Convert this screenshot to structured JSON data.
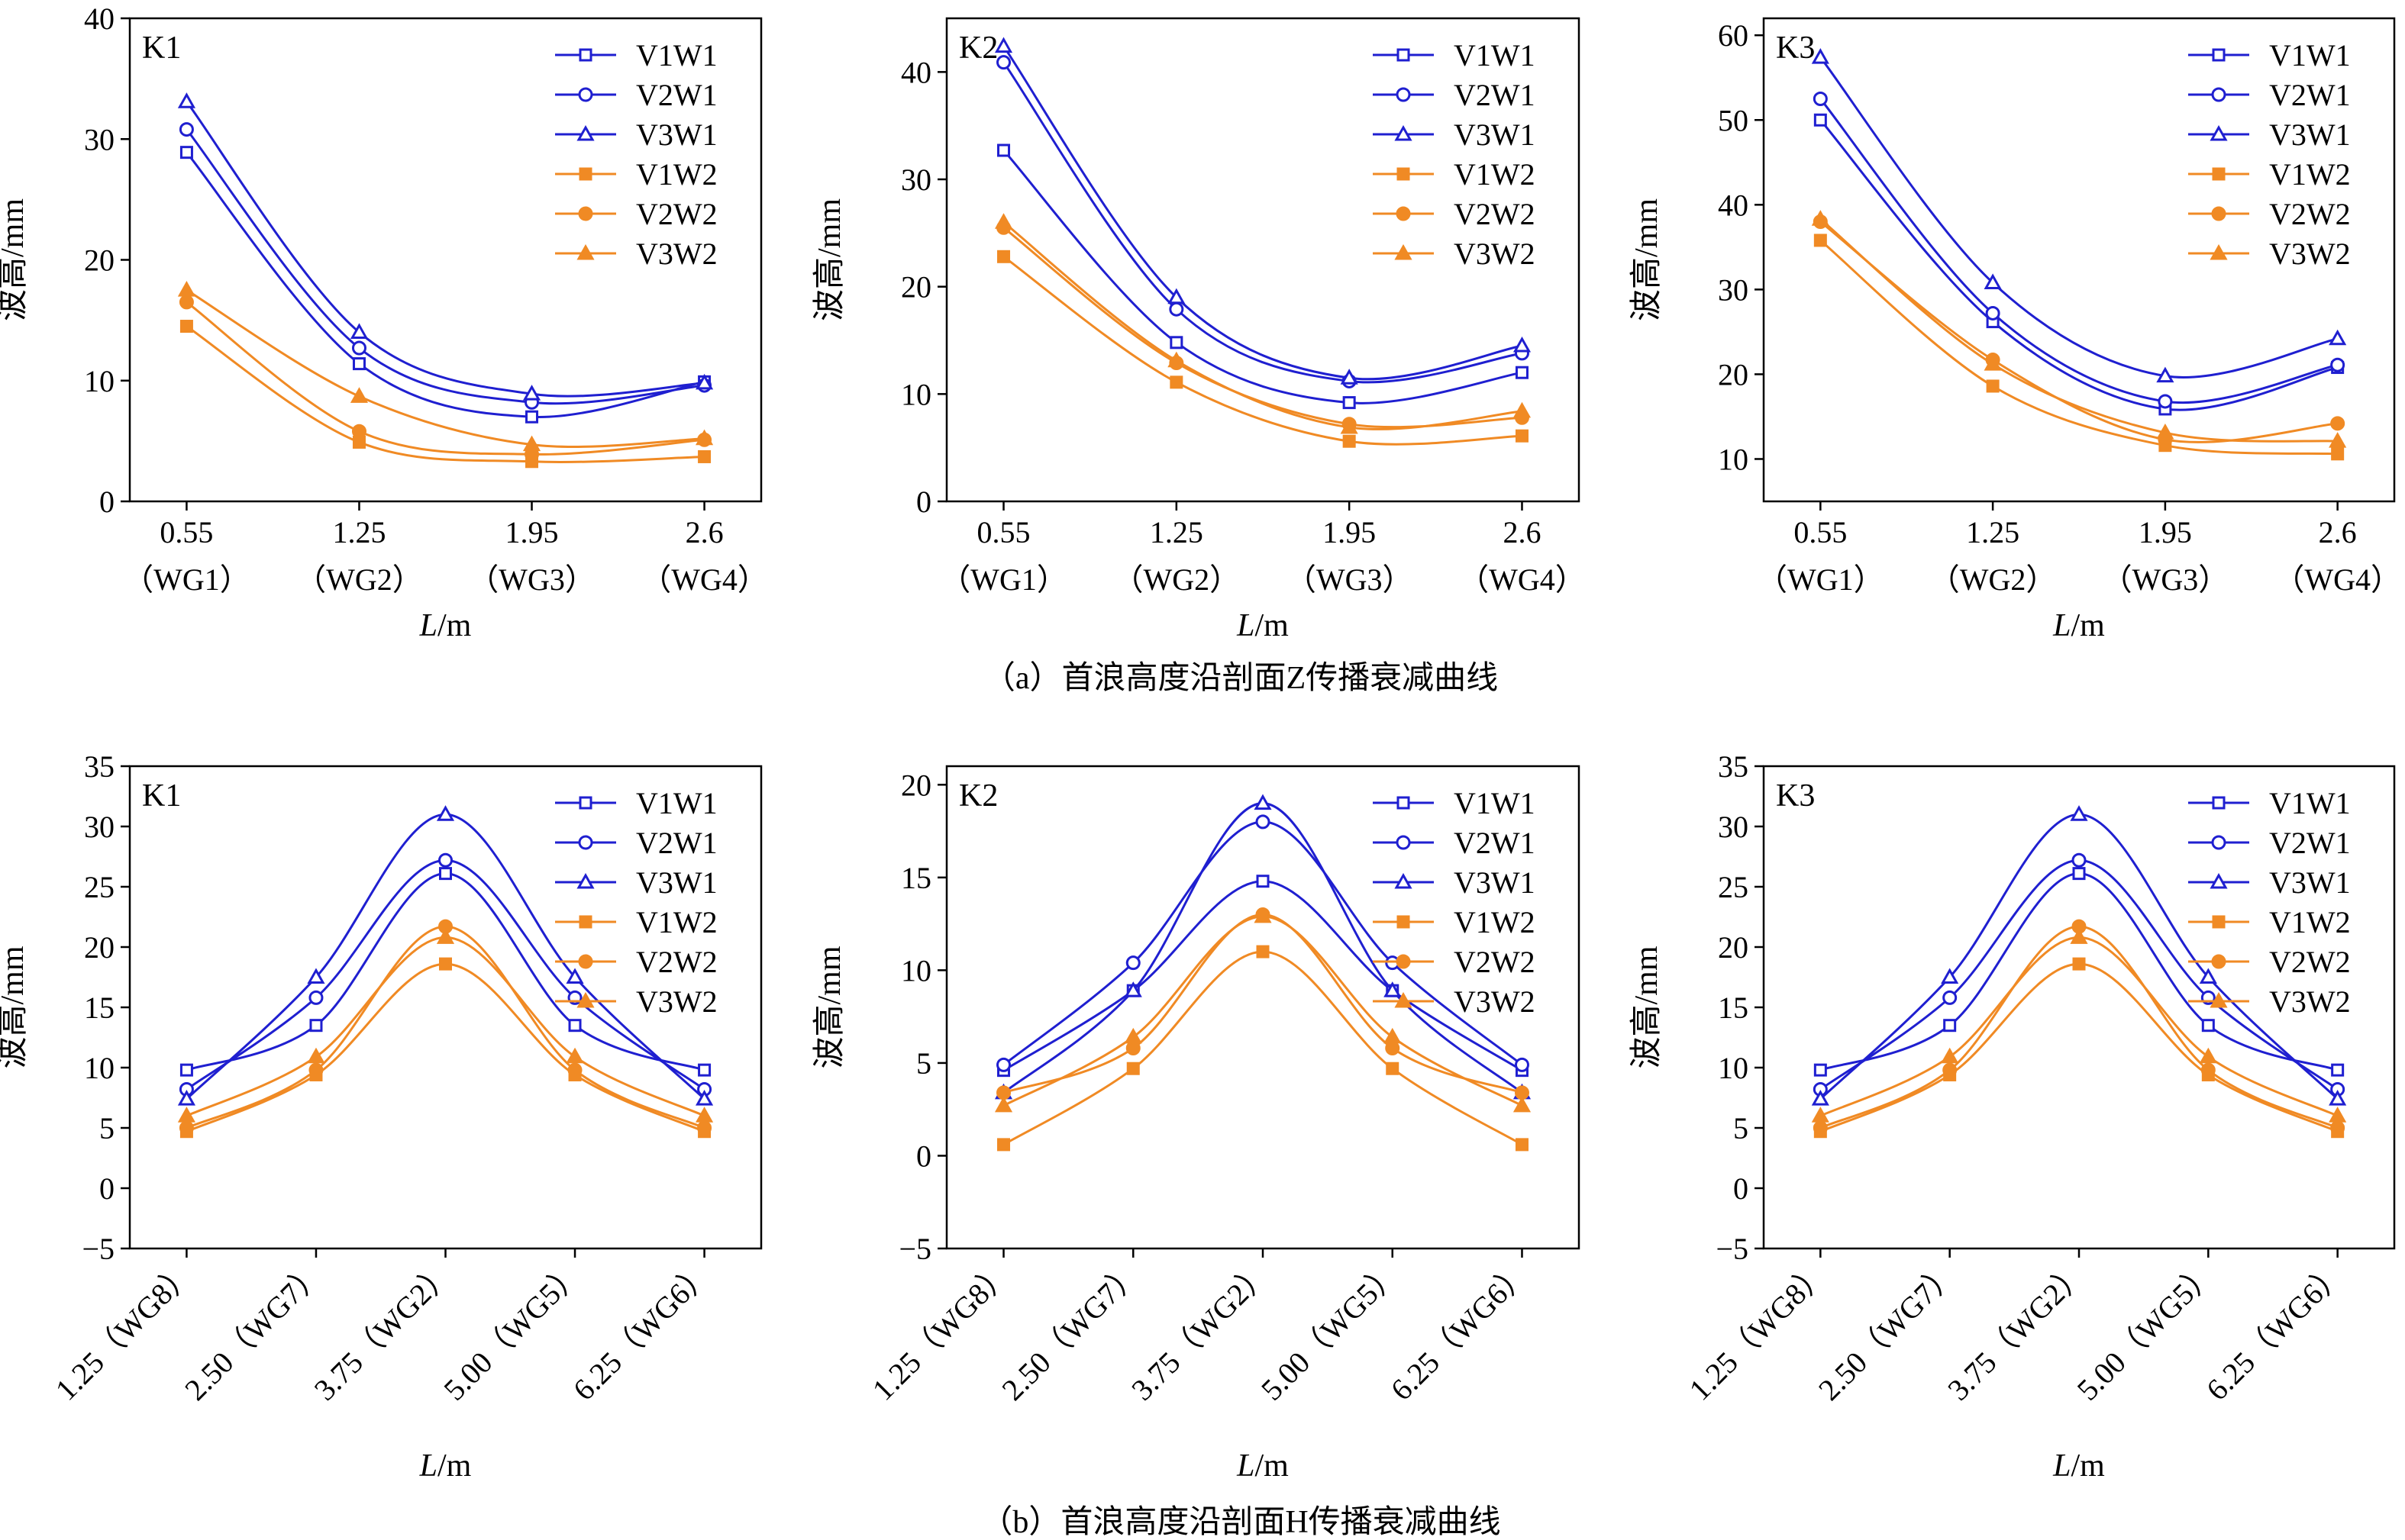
{
  "captions": {
    "row_a": "（a）首浪高度沿剖面Z传播衰减曲线",
    "row_b": "（b）首浪高度沿剖面H传播衰减曲线"
  },
  "series_styles": [
    {
      "name": "V1W1",
      "color": "#1f1fd0",
      "marker": "square",
      "filled": false
    },
    {
      "name": "V2W1",
      "color": "#1f1fd0",
      "marker": "circle",
      "filled": false
    },
    {
      "name": "V3W1",
      "color": "#1f1fd0",
      "marker": "triangle",
      "filled": false
    },
    {
      "name": "V1W2",
      "color": "#f08a24",
      "marker": "square",
      "filled": true
    },
    {
      "name": "V2W2",
      "color": "#f08a24",
      "marker": "circle",
      "filled": true
    },
    {
      "name": "V3W2",
      "color": "#f08a24",
      "marker": "triangle",
      "filled": true
    }
  ],
  "chart_data": [
    {
      "type": "line",
      "panel": "K1",
      "row": "a",
      "categories": [
        "0.55（WG1）",
        "1.25（WG2）",
        "1.95（WG3）",
        "2.6（WG4）"
      ],
      "x_tick_values": [
        "0.55",
        "1.25",
        "1.95",
        "2.6"
      ],
      "x_tick_gauges": [
        "（WG1）",
        "（WG2）",
        "（WG3）",
        "（WG4）"
      ],
      "xlabel": "L/m",
      "ylabel": "波高/mm",
      "ylim": [
        0,
        40
      ],
      "yticks": [
        0,
        10,
        20,
        30,
        40
      ],
      "legend": "top-right",
      "series": [
        {
          "name": "V1W1",
          "values": [
            28.9,
            11.4,
            7.0,
            9.9
          ]
        },
        {
          "name": "V2W1",
          "values": [
            30.8,
            12.7,
            8.2,
            9.6
          ]
        },
        {
          "name": "V3W1",
          "values": [
            33.1,
            14.0,
            8.9,
            9.8
          ]
        },
        {
          "name": "V1W2",
          "values": [
            14.5,
            4.9,
            3.3,
            3.7
          ]
        },
        {
          "name": "V2W2",
          "values": [
            16.5,
            5.8,
            3.9,
            5.1
          ]
        },
        {
          "name": "V3W2",
          "values": [
            17.5,
            8.7,
            4.7,
            5.2
          ]
        }
      ]
    },
    {
      "type": "line",
      "panel": "K2",
      "row": "a",
      "categories": [
        "0.55（WG1）",
        "1.25（WG2）",
        "1.95（WG3）",
        "2.6（WG4）"
      ],
      "x_tick_values": [
        "0.55",
        "1.25",
        "1.95",
        "2.6"
      ],
      "x_tick_gauges": [
        "（WG1）",
        "（WG2）",
        "（WG3）",
        "（WG4）"
      ],
      "xlabel": "L/m",
      "ylabel": "波高/mm",
      "ylim": [
        0,
        45
      ],
      "yticks": [
        0,
        10,
        20,
        30,
        40
      ],
      "legend": "top-right",
      "series": [
        {
          "name": "V1W1",
          "values": [
            32.7,
            14.8,
            9.2,
            12.0
          ]
        },
        {
          "name": "V2W1",
          "values": [
            40.9,
            17.9,
            11.2,
            13.8
          ]
        },
        {
          "name": "V3W1",
          "values": [
            42.4,
            19.0,
            11.5,
            14.5
          ]
        },
        {
          "name": "V1W2",
          "values": [
            22.8,
            11.1,
            5.6,
            6.1
          ]
        },
        {
          "name": "V2W2",
          "values": [
            25.5,
            12.9,
            7.2,
            7.8
          ]
        },
        {
          "name": "V3W2",
          "values": [
            26.0,
            13.1,
            6.9,
            8.4
          ]
        }
      ]
    },
    {
      "type": "line",
      "panel": "K3",
      "row": "a",
      "categories": [
        "0.55（WG1）",
        "1.25（WG2）",
        "1.95（WG3）",
        "2.6（WG4）"
      ],
      "x_tick_values": [
        "0.55",
        "1.25",
        "1.95",
        "2.6"
      ],
      "x_tick_gauges": [
        "（WG1）",
        "（WG2）",
        "（WG3）",
        "（WG4）"
      ],
      "xlabel": "L/m",
      "ylabel": "波高/mm",
      "ylim": [
        5,
        62
      ],
      "yticks": [
        10,
        20,
        30,
        40,
        50,
        60
      ],
      "legend": "top-right",
      "series": [
        {
          "name": "V1W1",
          "values": [
            50.0,
            26.2,
            15.9,
            20.8
          ]
        },
        {
          "name": "V2W1",
          "values": [
            52.5,
            27.2,
            16.8,
            21.1
          ]
        },
        {
          "name": "V3W1",
          "values": [
            57.4,
            30.8,
            19.8,
            24.2
          ]
        },
        {
          "name": "V1W2",
          "values": [
            35.8,
            18.6,
            11.6,
            10.6
          ]
        },
        {
          "name": "V2W2",
          "values": [
            38.0,
            21.7,
            12.3,
            14.2
          ]
        },
        {
          "name": "V3W2",
          "values": [
            38.3,
            21.2,
            13.1,
            12.1
          ]
        }
      ]
    },
    {
      "type": "line",
      "panel": "K1",
      "row": "b",
      "categories": [
        "1.25（WG8）",
        "2.50（WG7）",
        "3.75（WG2）",
        "5.00（WG5）",
        "6.25（WG6）"
      ],
      "xlabel": "L/m",
      "ylabel": "波高/mm",
      "ylim": [
        -5,
        35
      ],
      "yticks": [
        -5,
        0,
        5,
        10,
        15,
        20,
        25,
        30,
        35
      ],
      "legend": "top-right",
      "series": [
        {
          "name": "V1W1",
          "values": [
            9.8,
            13.5,
            26.1,
            13.5,
            9.8
          ]
        },
        {
          "name": "V2W1",
          "values": [
            8.2,
            15.8,
            27.2,
            15.8,
            8.2
          ]
        },
        {
          "name": "V3W1",
          "values": [
            7.4,
            17.5,
            31.0,
            17.5,
            7.4
          ]
        },
        {
          "name": "V1W2",
          "values": [
            4.7,
            9.4,
            18.6,
            9.4,
            4.7
          ]
        },
        {
          "name": "V2W2",
          "values": [
            5.0,
            9.8,
            21.7,
            9.8,
            5.0
          ]
        },
        {
          "name": "V3W2",
          "values": [
            6.0,
            10.9,
            20.8,
            10.9,
            6.0
          ]
        }
      ]
    },
    {
      "type": "line",
      "panel": "K2",
      "row": "b",
      "categories": [
        "1.25（WG8）",
        "2.50（WG7）",
        "3.75（WG2）",
        "5.00（WG5）",
        "6.25（WG6）"
      ],
      "xlabel": "L/m",
      "ylabel": "波高/mm",
      "ylim": [
        -5,
        21
      ],
      "yticks": [
        -5,
        0,
        5,
        10,
        15,
        20
      ],
      "legend": "top-right",
      "series": [
        {
          "name": "V1W1",
          "values": [
            4.6,
            8.9,
            14.8,
            8.9,
            4.6
          ]
        },
        {
          "name": "V2W1",
          "values": [
            4.9,
            10.4,
            18.0,
            10.4,
            4.9
          ]
        },
        {
          "name": "V3W1",
          "values": [
            3.4,
            8.9,
            19.0,
            8.9,
            3.4
          ]
        },
        {
          "name": "V1W2",
          "values": [
            0.6,
            4.7,
            11.0,
            4.7,
            0.6
          ]
        },
        {
          "name": "V2W2",
          "values": [
            3.4,
            5.8,
            13.0,
            5.8,
            3.4
          ]
        },
        {
          "name": "V3W2",
          "values": [
            2.7,
            6.4,
            12.9,
            6.4,
            2.7
          ]
        }
      ]
    },
    {
      "type": "line",
      "panel": "K3",
      "row": "b",
      "categories": [
        "1.25（WG8）",
        "2.50（WG7）",
        "3.75（WG2）",
        "5.00（WG5）",
        "6.25（WG6）"
      ],
      "xlabel": "L/m",
      "ylabel": "波高/mm",
      "ylim": [
        -5,
        35
      ],
      "yticks": [
        -5,
        0,
        5,
        10,
        15,
        20,
        25,
        30,
        35
      ],
      "legend": "top-right",
      "series": [
        {
          "name": "V1W1",
          "values": [
            9.8,
            13.5,
            26.1,
            13.5,
            9.8
          ]
        },
        {
          "name": "V2W1",
          "values": [
            8.2,
            15.8,
            27.2,
            15.8,
            8.2
          ]
        },
        {
          "name": "V3W1",
          "values": [
            7.4,
            17.5,
            31.0,
            17.5,
            7.4
          ]
        },
        {
          "name": "V1W2",
          "values": [
            4.7,
            9.4,
            18.6,
            9.4,
            4.7
          ]
        },
        {
          "name": "V2W2",
          "values": [
            5.0,
            9.8,
            21.7,
            9.8,
            5.0
          ]
        },
        {
          "name": "V3W2",
          "values": [
            6.0,
            10.9,
            20.8,
            10.9,
            6.0
          ]
        }
      ]
    }
  ]
}
